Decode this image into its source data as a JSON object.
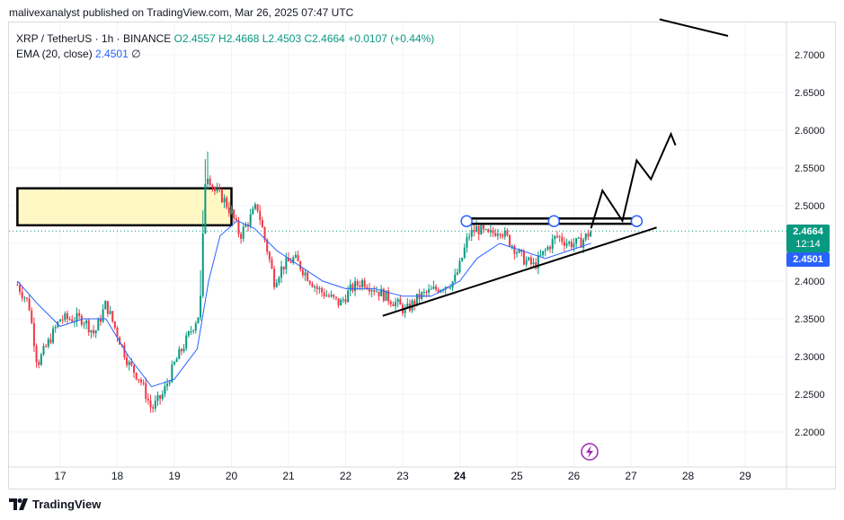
{
  "header": {
    "text": "malivexanalyst published on TradingView.com, Mar 26, 2025 07:47 UTC"
  },
  "legend": {
    "symbol": "XRP / TetherUS · 1h · BINANCE",
    "open": "O2.4557",
    "high": "H2.4668",
    "low": "L2.4503",
    "close": "C2.4664",
    "change": "+0.0107 (+0.44%)",
    "ema_label": "EMA (20, close)",
    "ema_value": "2.4501",
    "ema_extra": "∅"
  },
  "price_tags": {
    "last_price": "2.4664",
    "countdown": "12:14",
    "ema_price": "2.4501"
  },
  "footer": {
    "brand": "TradingView",
    "logo_icon": "tradingview-logo-icon"
  },
  "colors": {
    "up": "#089981",
    "down": "#f23645",
    "ema": "#2962ff",
    "zone": "#fff8c5",
    "lightning": "#9c27b0"
  },
  "chart_data": {
    "type": "candlestick",
    "title": "XRP / TetherUS · 1h · BINANCE",
    "y_ticks": [
      2.2,
      2.25,
      2.3,
      2.35,
      2.4,
      2.45,
      2.5,
      2.55,
      2.6,
      2.65,
      2.7
    ],
    "y_tick_labels": [
      "2.2000",
      "2.2500",
      "2.3000",
      "2.3500",
      "2.4000",
      "2.4500",
      "2.5000",
      "2.5500",
      "2.6000",
      "2.6500",
      "2.7000"
    ],
    "ylim": [
      2.13,
      2.765
    ],
    "x_ticks": [
      "17",
      "18",
      "19",
      "20",
      "21",
      "22",
      "23",
      "24",
      "25",
      "26",
      "27",
      "28",
      "29"
    ],
    "x_range_days": [
      16.25,
      29.6
    ],
    "last_price": 2.4664,
    "ema_last": 2.4501,
    "price_path": [
      [
        16.25,
        2.395
      ],
      [
        16.45,
        2.37
      ],
      [
        16.6,
        2.29
      ],
      [
        16.8,
        2.32
      ],
      [
        17.0,
        2.35
      ],
      [
        17.2,
        2.35
      ],
      [
        17.4,
        2.35
      ],
      [
        17.6,
        2.33
      ],
      [
        17.8,
        2.37
      ],
      [
        18.0,
        2.33
      ],
      [
        18.2,
        2.29
      ],
      [
        18.4,
        2.27
      ],
      [
        18.6,
        2.23
      ],
      [
        18.8,
        2.25
      ],
      [
        19.0,
        2.29
      ],
      [
        19.2,
        2.32
      ],
      [
        19.45,
        2.36
      ],
      [
        19.55,
        2.55
      ],
      [
        19.7,
        2.52
      ],
      [
        19.85,
        2.51
      ],
      [
        20.0,
        2.49
      ],
      [
        20.15,
        2.46
      ],
      [
        20.3,
        2.48
      ],
      [
        20.45,
        2.5
      ],
      [
        20.6,
        2.45
      ],
      [
        20.75,
        2.4
      ],
      [
        20.9,
        2.42
      ],
      [
        21.1,
        2.43
      ],
      [
        21.3,
        2.41
      ],
      [
        21.5,
        2.39
      ],
      [
        21.7,
        2.38
      ],
      [
        21.9,
        2.37
      ],
      [
        22.1,
        2.39
      ],
      [
        22.3,
        2.4
      ],
      [
        22.5,
        2.39
      ],
      [
        22.7,
        2.38
      ],
      [
        22.9,
        2.37
      ],
      [
        23.05,
        2.36
      ],
      [
        23.3,
        2.38
      ],
      [
        23.6,
        2.39
      ],
      [
        23.9,
        2.4
      ],
      [
        24.0,
        2.42
      ],
      [
        24.15,
        2.46
      ],
      [
        24.3,
        2.47
      ],
      [
        24.5,
        2.46
      ],
      [
        24.7,
        2.47
      ],
      [
        24.9,
        2.45
      ],
      [
        25.1,
        2.43
      ],
      [
        25.3,
        2.42
      ],
      [
        25.5,
        2.44
      ],
      [
        25.7,
        2.46
      ],
      [
        25.9,
        2.45
      ],
      [
        26.1,
        2.45
      ],
      [
        26.3,
        2.4664
      ]
    ],
    "ema_path": [
      [
        16.25,
        2.4
      ],
      [
        16.6,
        2.37
      ],
      [
        17.0,
        2.34
      ],
      [
        17.4,
        2.35
      ],
      [
        17.8,
        2.35
      ],
      [
        18.2,
        2.3
      ],
      [
        18.6,
        2.26
      ],
      [
        19.0,
        2.27
      ],
      [
        19.4,
        2.31
      ],
      [
        19.6,
        2.4
      ],
      [
        19.8,
        2.46
      ],
      [
        20.1,
        2.48
      ],
      [
        20.4,
        2.47
      ],
      [
        20.8,
        2.44
      ],
      [
        21.2,
        2.42
      ],
      [
        21.6,
        2.4
      ],
      [
        22.0,
        2.39
      ],
      [
        22.5,
        2.39
      ],
      [
        23.0,
        2.38
      ],
      [
        23.5,
        2.38
      ],
      [
        24.0,
        2.4
      ],
      [
        24.3,
        2.43
      ],
      [
        24.7,
        2.45
      ],
      [
        25.1,
        2.44
      ],
      [
        25.5,
        2.43
      ],
      [
        25.9,
        2.44
      ],
      [
        26.3,
        2.4501
      ]
    ],
    "annotations": {
      "supply_zone": {
        "x": [
          16.25,
          20.0
        ],
        "y": [
          2.474,
          2.523
        ]
      },
      "resistance_box": {
        "x": [
          24.12,
          27.1
        ],
        "y": [
          2.476,
          2.483
        ]
      },
      "ascending_trendline": [
        [
          22.65,
          2.354
        ],
        [
          27.45,
          2.471
        ]
      ],
      "projected_path": [
        [
          26.3,
          2.47
        ],
        [
          26.5,
          2.52
        ],
        [
          26.85,
          2.48
        ],
        [
          27.1,
          2.56
        ],
        [
          27.35,
          2.535
        ],
        [
          27.7,
          2.595
        ],
        [
          27.78,
          2.58
        ]
      ],
      "top_line": [
        [
          27.5,
          2.747
        ],
        [
          28.7,
          2.725
        ]
      ]
    }
  }
}
